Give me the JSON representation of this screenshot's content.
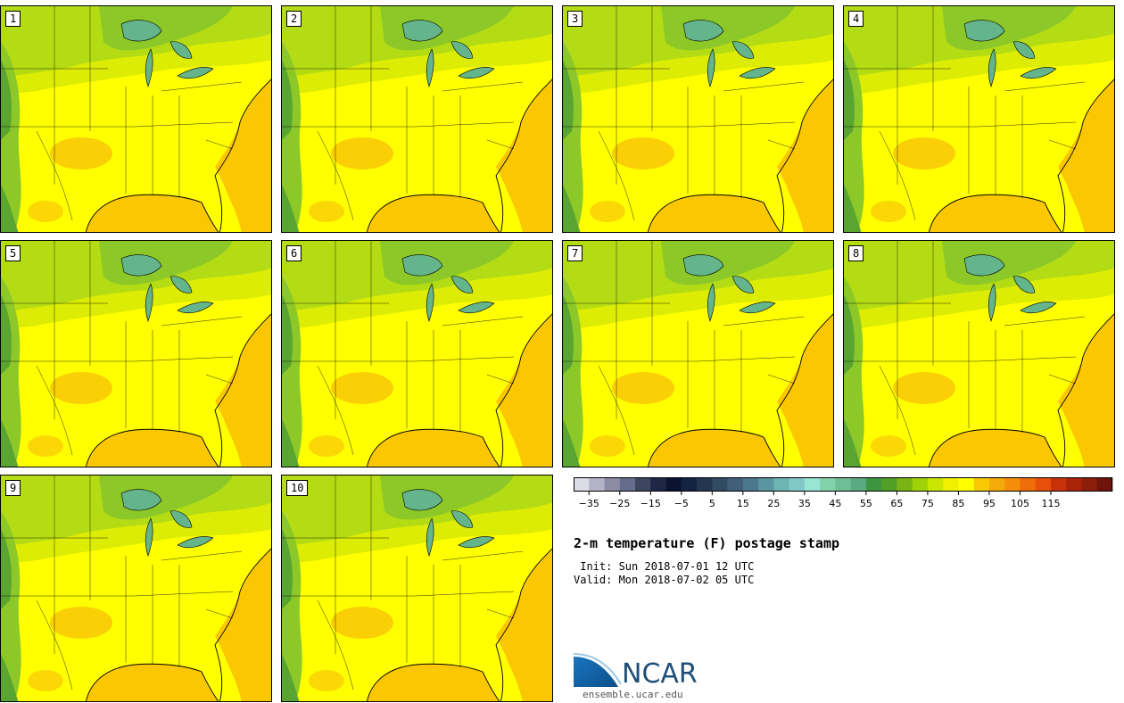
{
  "title": "2-m temperature (F) postage stamp",
  "init_text": " Init: Sun 2018-07-01 12 UTC",
  "valid_text": "Valid: Mon 2018-07-02 05 UTC",
  "logo": {
    "name": "NCAR",
    "url": "ensemble.ucar.edu"
  },
  "members": [
    "1",
    "2",
    "3",
    "4",
    "5",
    "6",
    "7",
    "8",
    "9",
    "10"
  ],
  "colors": {
    "ocean_warm": "#fac700",
    "land_yellow": "#ffff00",
    "land_yellowgreen": "#dcec05",
    "land_lightgreen": "#b4dc14",
    "land_green": "#8cc828",
    "land_darkgreen": "#5aa532",
    "land_teal": "#50a05a",
    "lakes": "#64b48c",
    "hot_orange": "#f7a80a",
    "border": "#000000"
  },
  "colorbar": {
    "colors": [
      "#dcdce6",
      "#b4b4c8",
      "#8c8ca5",
      "#646e8c",
      "#3c465f",
      "#1e2846",
      "#0a1432",
      "#142341",
      "#233750",
      "#324b64",
      "#415f78",
      "#4b788c",
      "#5a96a0",
      "#6eb4b4",
      "#82c8c8",
      "#96e6d2",
      "#82d2aa",
      "#6ebe96",
      "#5aaa82",
      "#3c9641",
      "#50a028",
      "#78b414",
      "#a0d20a",
      "#c8e600",
      "#f0f000",
      "#ffff00",
      "#fac800",
      "#f5aa0a",
      "#f58c0a",
      "#f06e0a",
      "#e6500a",
      "#c8320a",
      "#aa230a",
      "#8c1e0a",
      "#6e140a"
    ],
    "tick_labels": [
      "−35",
      "−25",
      "−15",
      "−5",
      "5",
      "15",
      "25",
      "35",
      "45",
      "55",
      "65",
      "75",
      "85",
      "95",
      "105",
      "115"
    ],
    "tick_values": [
      -35,
      -25,
      -15,
      -5,
      5,
      15,
      25,
      35,
      45,
      55,
      65,
      75,
      85,
      95,
      105,
      115
    ],
    "min": -40,
    "max": 135
  }
}
